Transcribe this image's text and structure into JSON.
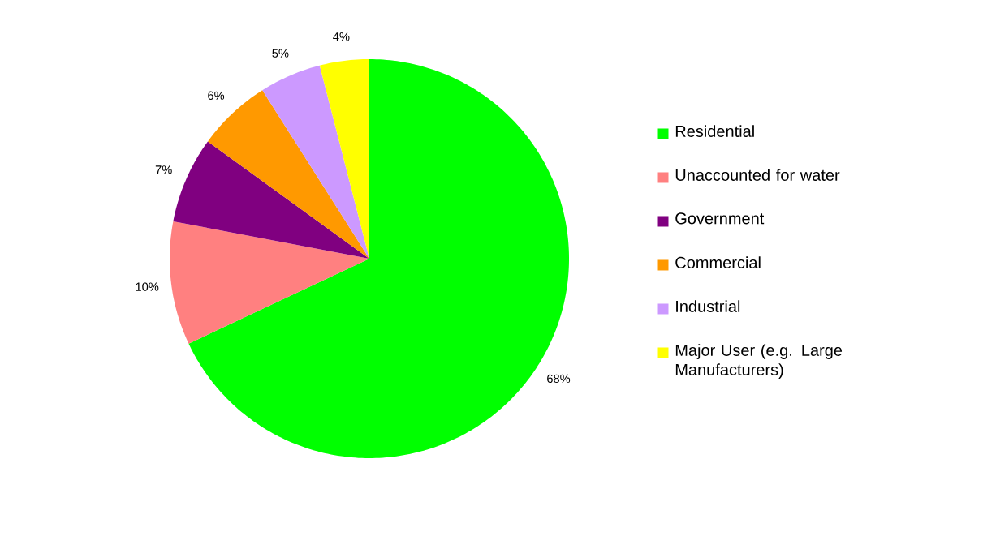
{
  "chart_data": {
    "type": "pie",
    "categories": [
      "Residential",
      "Unaccounted for water",
      "Government",
      "Commercial",
      "Industrial",
      "Major User (e.g. Large Manufacturers)"
    ],
    "values": [
      68,
      10,
      7,
      6,
      5,
      4
    ],
    "colors": [
      "#00ff00",
      "#ff8080",
      "#800080",
      "#ff9900",
      "#cc99ff",
      "#ffff00"
    ],
    "value_labels": [
      "68%",
      "10%",
      "7%",
      "6%",
      "5%",
      "4%"
    ],
    "legend": "right"
  }
}
